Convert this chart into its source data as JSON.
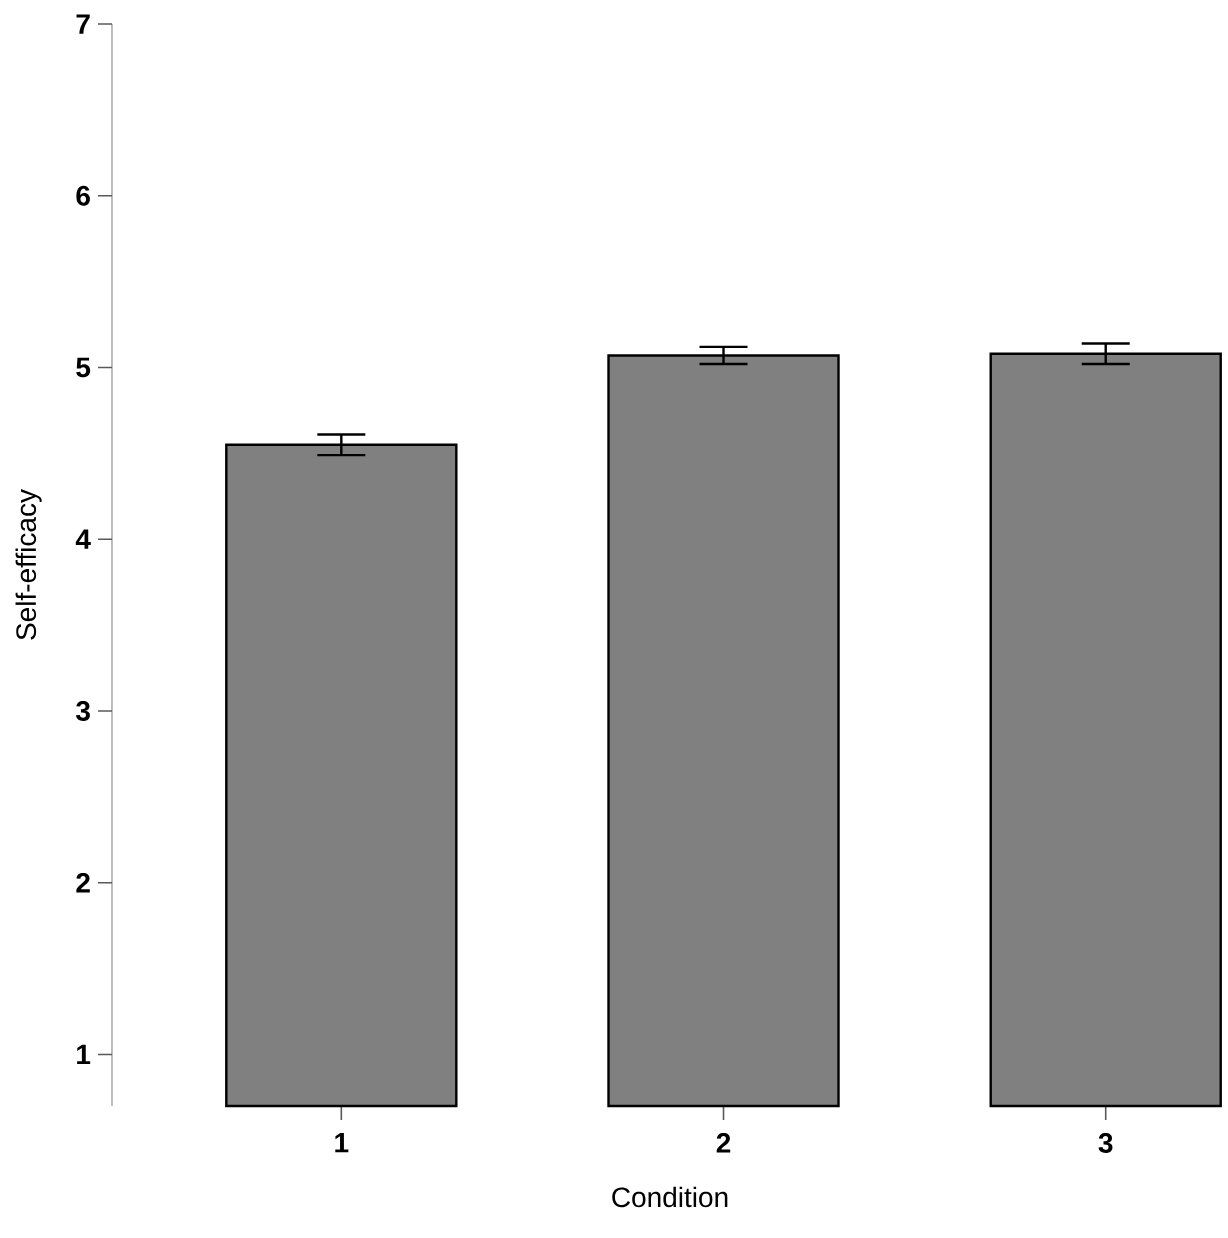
{
  "chart_data": {
    "type": "bar",
    "xlabel": "Condition",
    "ylabel": "Self-efficacy",
    "categories": [
      "1",
      "2",
      "3"
    ],
    "values": [
      4.55,
      5.07,
      5.08
    ],
    "errors": [
      0.06,
      0.05,
      0.06
    ],
    "color": "#808080",
    "ylim": [
      0.7,
      7
    ],
    "yticks": [
      1,
      2,
      3,
      4,
      5,
      6,
      7
    ]
  }
}
